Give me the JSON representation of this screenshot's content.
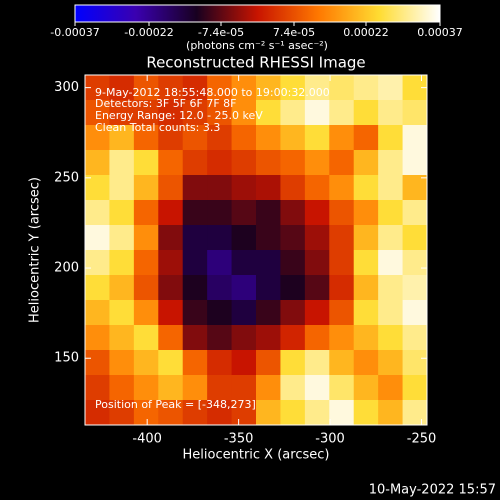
{
  "chart_data": {
    "type": "heatmap",
    "title": "Reconstructed RHESSI Image",
    "xlabel": "Heliocentric X (arcsec)",
    "ylabel": "Heliocentric Y (arcsec)",
    "annotations": [
      "9-May-2012 18:55:48.000 to 19:00:32.000",
      "Detectors: 3F 5F 6F 7F 8F",
      "Energy Range: 12.0 - 25.0 keV",
      "Clean     Total counts: 3.3",
      "Position of Peak = [-348,273]"
    ],
    "footer": "10-May-2022 15:57",
    "colorbar_label": "(photons cm⁻² s⁻¹ asec⁻²)",
    "clim": [
      -0.00037,
      0.00037
    ],
    "cticks": [
      {
        "value": -0.00037,
        "label": "-0.00037"
      },
      {
        "value": -0.00022,
        "label": "-0.00022"
      },
      {
        "value": -7.4e-05,
        "label": "-7.4e-05"
      },
      {
        "value": 7.4e-05,
        "label": "7.4e-05"
      },
      {
        "value": 0.00022,
        "label": "0.00022"
      },
      {
        "value": 0.00037,
        "label": "0.00037"
      }
    ],
    "colormap": [
      "#0000ff",
      "#3a00b0",
      "#180020",
      "#c81400",
      "#ff7800",
      "#ffdc32",
      "#ffffff"
    ],
    "xlim": [
      -434,
      -247
    ],
    "ylim": [
      113,
      307
    ],
    "xticks": [
      -400,
      -350,
      -300,
      -250
    ],
    "yticks": [
      150,
      200,
      250,
      300
    ],
    "z": [
      [
        5e-05,
        3e-05,
        8e-05,
        5e-05,
        3e-05,
        0.0001,
        0.00015,
        0.0002,
        0.00025,
        0.0003,
        0.00028,
        0.0003,
        0.00032,
        0.00025
      ],
      [
        8e-05,
        5e-05,
        5e-05,
        3e-05,
        5e-05,
        8e-05,
        0.00015,
        0.00025,
        0.0003,
        0.00035,
        0.0003,
        0.00025,
        0.0003,
        0.00028
      ],
      [
        0.00015,
        0.0002,
        0.0001,
        5e-05,
        8e-05,
        5e-05,
        0.0001,
        0.00015,
        0.0002,
        0.00025,
        0.00015,
        0.0001,
        0.00025,
        0.00035
      ],
      [
        0.0002,
        0.0003,
        0.00025,
        0.0001,
        5e-05,
        3e-05,
        5e-05,
        8e-05,
        0.0001,
        0.00015,
        0.0001,
        0.0002,
        0.0003,
        0.00035
      ],
      [
        0.00025,
        0.0003,
        0.0002,
        8e-05,
        -5e-05,
        -5e-05,
        -3e-05,
        -2e-05,
        5e-05,
        0.0001,
        0.00015,
        0.00025,
        0.0003,
        0.0002
      ],
      [
        0.0003,
        0.00025,
        0.0001,
        0,
        -0.0001,
        -0.0001,
        -8e-05,
        -0.0001,
        -5e-05,
        0,
        8e-05,
        0.00015,
        0.00025,
        0.0003
      ],
      [
        0.00035,
        0.0003,
        0.00015,
        -5e-05,
        -0.00015,
        -0.00015,
        -0.00012,
        -0.0001,
        -8e-05,
        -3e-05,
        5e-05,
        0.0002,
        0.0003,
        0.00025
      ],
      [
        0.0003,
        0.00025,
        0.0001,
        -3e-05,
        -0.00015,
        -0.0002,
        -0.00015,
        -0.00015,
        -0.0001,
        -5e-05,
        5e-05,
        0.00025,
        0.00035,
        0.0003
      ],
      [
        0.00025,
        0.0002,
        8e-05,
        -5e-05,
        -0.00012,
        -0.00018,
        -0.0002,
        -0.00015,
        -0.00012,
        -8e-05,
        3e-05,
        0.0002,
        0.0003,
        0.00032
      ],
      [
        0.0002,
        0.00025,
        0.00015,
        0,
        -0.0001,
        -0.00012,
        -0.00015,
        -0.0001,
        -5e-05,
        0,
        8e-05,
        0.00025,
        0.0003,
        0.00035
      ],
      [
        0.00015,
        0.0002,
        0.00025,
        0.0001,
        -5e-05,
        -8e-05,
        -5e-05,
        -3e-05,
        2e-05,
        0.0001,
        0.00015,
        0.0002,
        0.00025,
        0.0003
      ],
      [
        8e-05,
        0.00015,
        0.0002,
        0.00025,
        0.0001,
        3e-05,
        0,
        8e-05,
        0.00025,
        0.0003,
        0.0002,
        0.00015,
        0.0002,
        0.00028
      ],
      [
        5e-05,
        0.0001,
        0.00015,
        0.0002,
        0.00015,
        5e-05,
        5e-05,
        0.00015,
        0.0003,
        0.00035,
        0.00028,
        0.0002,
        0.00015,
        0.00025
      ],
      [
        3e-05,
        5e-05,
        0.0001,
        8e-05,
        5e-05,
        3e-05,
        5e-05,
        0.0002,
        0.00025,
        0.0003,
        0.00035,
        0.00025,
        0.0002,
        0.0003
      ]
    ]
  }
}
